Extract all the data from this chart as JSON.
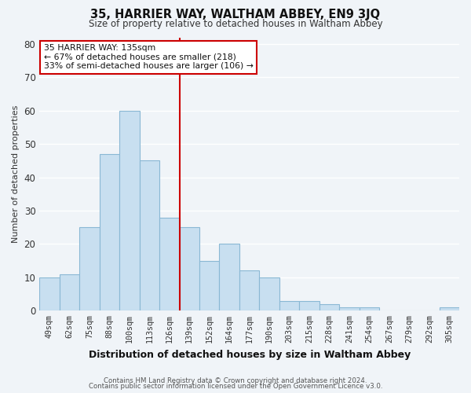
{
  "title": "35, HARRIER WAY, WALTHAM ABBEY, EN9 3JQ",
  "subtitle": "Size of property relative to detached houses in Waltham Abbey",
  "xlabel": "Distribution of detached houses by size in Waltham Abbey",
  "ylabel": "Number of detached properties",
  "bar_labels": [
    "49sqm",
    "62sqm",
    "75sqm",
    "88sqm",
    "100sqm",
    "113sqm",
    "126sqm",
    "139sqm",
    "152sqm",
    "164sqm",
    "177sqm",
    "190sqm",
    "203sqm",
    "215sqm",
    "228sqm",
    "241sqm",
    "254sqm",
    "267sqm",
    "279sqm",
    "292sqm",
    "305sqm"
  ],
  "bar_values": [
    10,
    11,
    25,
    47,
    60,
    45,
    28,
    25,
    15,
    20,
    12,
    10,
    3,
    3,
    2,
    1,
    1,
    0,
    0,
    0,
    1
  ],
  "bar_color": "#c8dff0",
  "bar_edge_color": "#8ab8d4",
  "vline_color": "#cc0000",
  "annotation_title": "35 HARRIER WAY: 135sqm",
  "annotation_line1": "← 67% of detached houses are smaller (218)",
  "annotation_line2": "33% of semi-detached houses are larger (106) →",
  "annotation_box_color": "#ffffff",
  "annotation_box_edge": "#cc0000",
  "ylim": [
    0,
    82
  ],
  "yticks": [
    0,
    10,
    20,
    30,
    40,
    50,
    60,
    70,
    80
  ],
  "footer1": "Contains HM Land Registry data © Crown copyright and database right 2024.",
  "footer2": "Contains public sector information licensed under the Open Government Licence v3.0.",
  "bg_color": "#f0f4f8",
  "grid_color": "#ffffff"
}
